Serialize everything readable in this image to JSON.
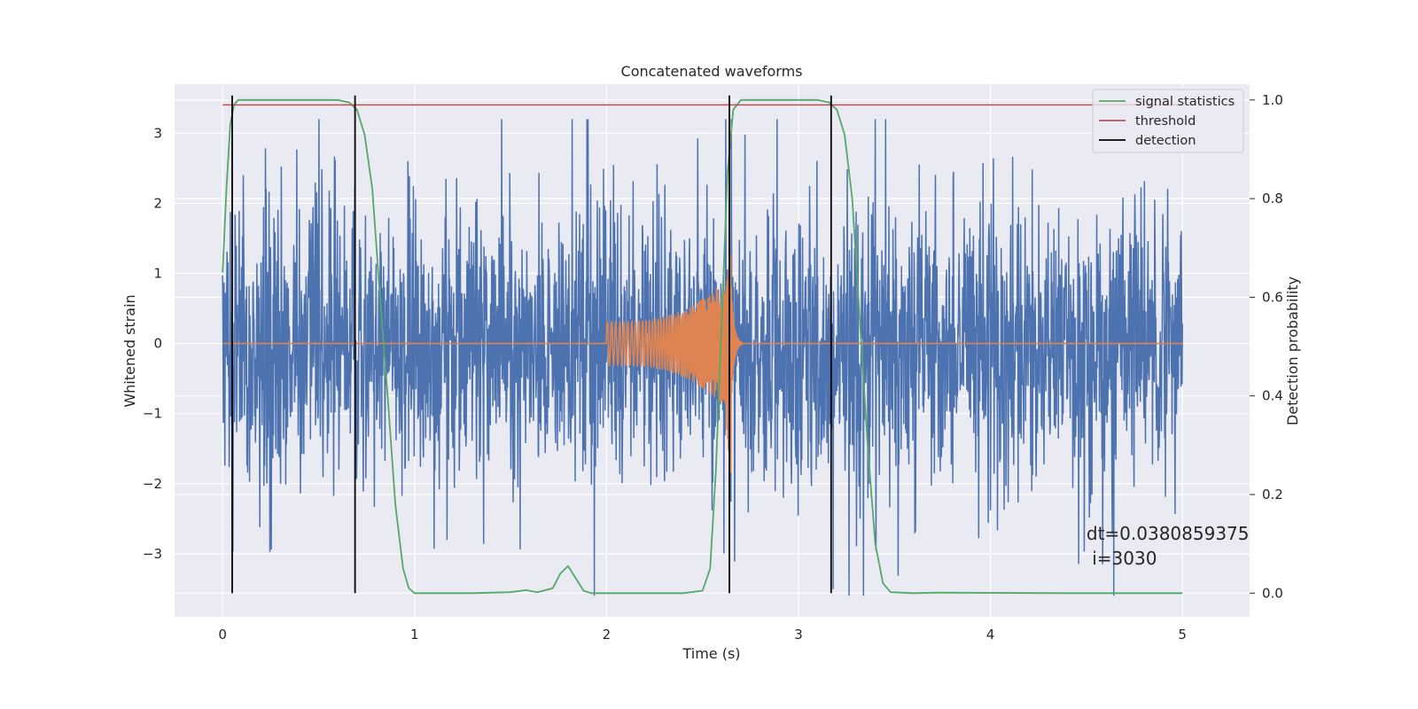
{
  "chart_data": {
    "type": "line",
    "title": "Concatenated waveforms",
    "xlabel": "Time (s)",
    "ylabel": "Whitened strain",
    "ylabel_right": "Detection probability",
    "xlim": [
      -0.25,
      5.35
    ],
    "ylim": [
      -3.9,
      3.7
    ],
    "ylim_right": [
      -0.048,
      1.032
    ],
    "grid": true,
    "legend_position": "top-right",
    "x_ticks": [
      {
        "value": 0,
        "label": "0"
      },
      {
        "value": 1,
        "label": "1"
      },
      {
        "value": 2,
        "label": "2"
      },
      {
        "value": 3,
        "label": "3"
      },
      {
        "value": 4,
        "label": "4"
      },
      {
        "value": 5,
        "label": "5"
      }
    ],
    "y_ticks": [
      {
        "value": 3,
        "label": "3"
      },
      {
        "value": 2,
        "label": "2"
      },
      {
        "value": 1,
        "label": "1"
      },
      {
        "value": 0,
        "label": "0"
      },
      {
        "value": -1,
        "label": "−1"
      },
      {
        "value": -2,
        "label": "−2"
      },
      {
        "value": -3,
        "label": "−3"
      }
    ],
    "y_ticks_right": [
      {
        "value": 1.0,
        "label": "1.0"
      },
      {
        "value": 0.8,
        "label": "0.8"
      },
      {
        "value": 0.6,
        "label": "0.6"
      },
      {
        "value": 0.4,
        "label": "0.4"
      },
      {
        "value": 0.2,
        "label": "0.2"
      },
      {
        "value": 0.0,
        "label": "0.0"
      }
    ],
    "series": [
      {
        "name": "",
        "axis": "left",
        "color": "#4c72b0",
        "kind": "noise",
        "x_range": [
          0,
          5
        ],
        "envelope_y": [
          -3.6,
          3.2
        ]
      },
      {
        "name": "",
        "axis": "left",
        "color": "#dd8452",
        "kind": "chirp",
        "x_range": [
          0,
          5
        ],
        "chirp_start": 2.0,
        "chirp_merger": 2.65,
        "peak_y": [
          -1.9,
          1.35
        ]
      },
      {
        "name": "signal statistics",
        "axis": "right",
        "color": "#55a868",
        "x": [
          0.0,
          0.02,
          0.04,
          0.06,
          0.08,
          0.12,
          0.6,
          0.66,
          0.7,
          0.74,
          0.78,
          0.82,
          0.86,
          0.9,
          0.94,
          0.97,
          1.0,
          1.3,
          1.5,
          1.58,
          1.64,
          1.72,
          1.76,
          1.8,
          1.84,
          1.88,
          1.92,
          2.4,
          2.5,
          2.54,
          2.57,
          2.6,
          2.63,
          2.66,
          2.7,
          2.8,
          3.1,
          3.16,
          3.2,
          3.24,
          3.28,
          3.32,
          3.36,
          3.4,
          3.44,
          3.48,
          3.6,
          3.72,
          4.4,
          5.0
        ],
        "y": [
          0.65,
          0.82,
          0.95,
          0.99,
          1.0,
          1.0,
          1.0,
          0.995,
          0.98,
          0.93,
          0.82,
          0.6,
          0.4,
          0.18,
          0.05,
          0.01,
          0.0,
          0.0,
          0.002,
          0.006,
          0.002,
          0.01,
          0.04,
          0.055,
          0.03,
          0.005,
          0.0,
          0.0,
          0.005,
          0.05,
          0.25,
          0.55,
          0.85,
          0.98,
          1.0,
          1.0,
          1.0,
          0.995,
          0.98,
          0.93,
          0.8,
          0.55,
          0.3,
          0.1,
          0.02,
          0.002,
          0.0,
          0.001,
          0.0,
          0.0
        ]
      },
      {
        "name": "threshold",
        "axis": "right",
        "color": "#c44e52",
        "x": [
          0.0,
          5.0
        ],
        "y": [
          0.99,
          0.99
        ]
      },
      {
        "name": "detection",
        "axis": "right",
        "color": "#000000",
        "kind": "vlines",
        "x": [
          0.05,
          0.69,
          2.64,
          3.17
        ],
        "y_range": [
          0.0,
          1.0
        ]
      }
    ],
    "annotation": {
      "line1": "dt=0.0380859375",
      "line2": " i=3030",
      "x": 4.5,
      "y": -2.8
    }
  }
}
